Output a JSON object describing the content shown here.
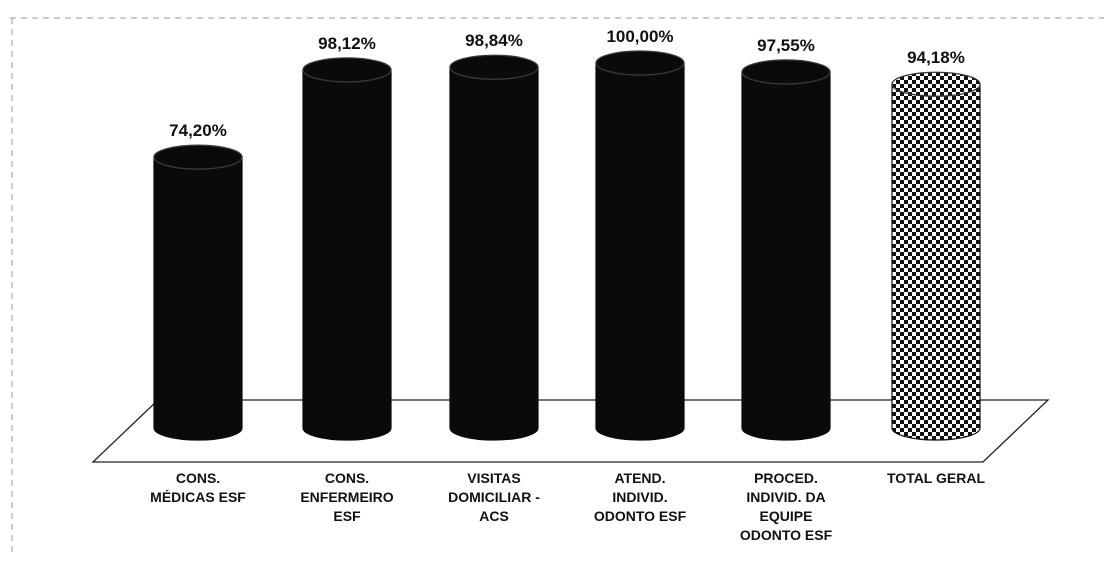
{
  "chart_data": {
    "type": "bar",
    "style": "3d-cylinder",
    "categories": [
      [
        "CONS.",
        "MÉDICAS ESF"
      ],
      [
        "CONS.",
        "ENFERMEIRO",
        "ESF"
      ],
      [
        "VISITAS",
        "DOMICILIAR  -",
        "ACS"
      ],
      [
        "ATEND.",
        "INDIVID.",
        "ODONTO ESF"
      ],
      [
        "PROCED.",
        "INDIVID.  DA",
        "EQUIPE",
        "ODONTO ESF"
      ],
      [
        "TOTAL GERAL"
      ]
    ],
    "values": [
      74.2,
      98.12,
      98.84,
      100.0,
      97.55,
      94.18
    ],
    "data_labels": [
      "74,20%",
      "98,12%",
      "98,84%",
      "100,00%",
      "97,55%",
      "94,18%"
    ],
    "ylim": [
      0,
      100
    ],
    "grid": false,
    "legend": "none",
    "colors": {
      "bar": "#0a0a0a",
      "total_pattern_dark": "#111111",
      "total_pattern_light": "#ffffff",
      "floor_line": "#222222"
    }
  }
}
